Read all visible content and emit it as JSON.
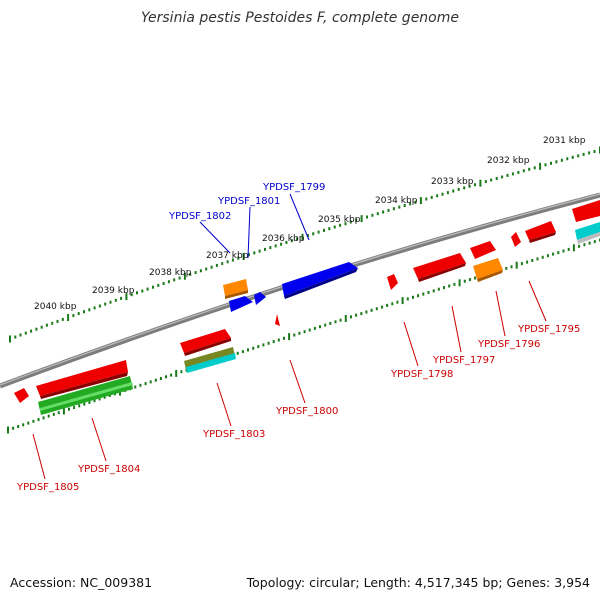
{
  "title": "Yersinia pestis Pestoides F, complete genome",
  "footer": {
    "accession": "Accession: NC_009381",
    "info": "Topology: circular; Length: 4,517,345 bp; Genes: 3,954"
  },
  "colors": {
    "backbone": "#858585",
    "tick": "#1a7a1a",
    "label_forward": "#0000cc",
    "label_reverse": "#cc0000",
    "red": "#ee0000",
    "blue": "#0000ee",
    "orange": "#ff8800",
    "green": "#22aa22",
    "cyan": "#00cccc",
    "olive": "#778822",
    "gray": "#bbbbbb"
  },
  "scale_labels": [
    "2031 kbp",
    "2032 kbp",
    "2033 kbp",
    "2034 kbp",
    "2035 kbp",
    "2036 kbp",
    "2037 kbp",
    "2038 kbp",
    "2039 kbp",
    "2040 kbp"
  ],
  "gene_labels": {
    "YPDSF_1799": "YPDSF_1799",
    "YPDSF_1801": "YPDSF_1801",
    "YPDSF_1802": "YPDSF_1802",
    "YPDSF_1795": "YPDSF_1795",
    "YPDSF_1796": "YPDSF_1796",
    "YPDSF_1797": "YPDSF_1797",
    "YPDSF_1798": "YPDSF_1798",
    "YPDSF_1800": "YPDSF_1800",
    "YPDSF_1803": "YPDSF_1803",
    "YPDSF_1804": "YPDSF_1804",
    "YPDSF_1805": "YPDSF_1805"
  }
}
